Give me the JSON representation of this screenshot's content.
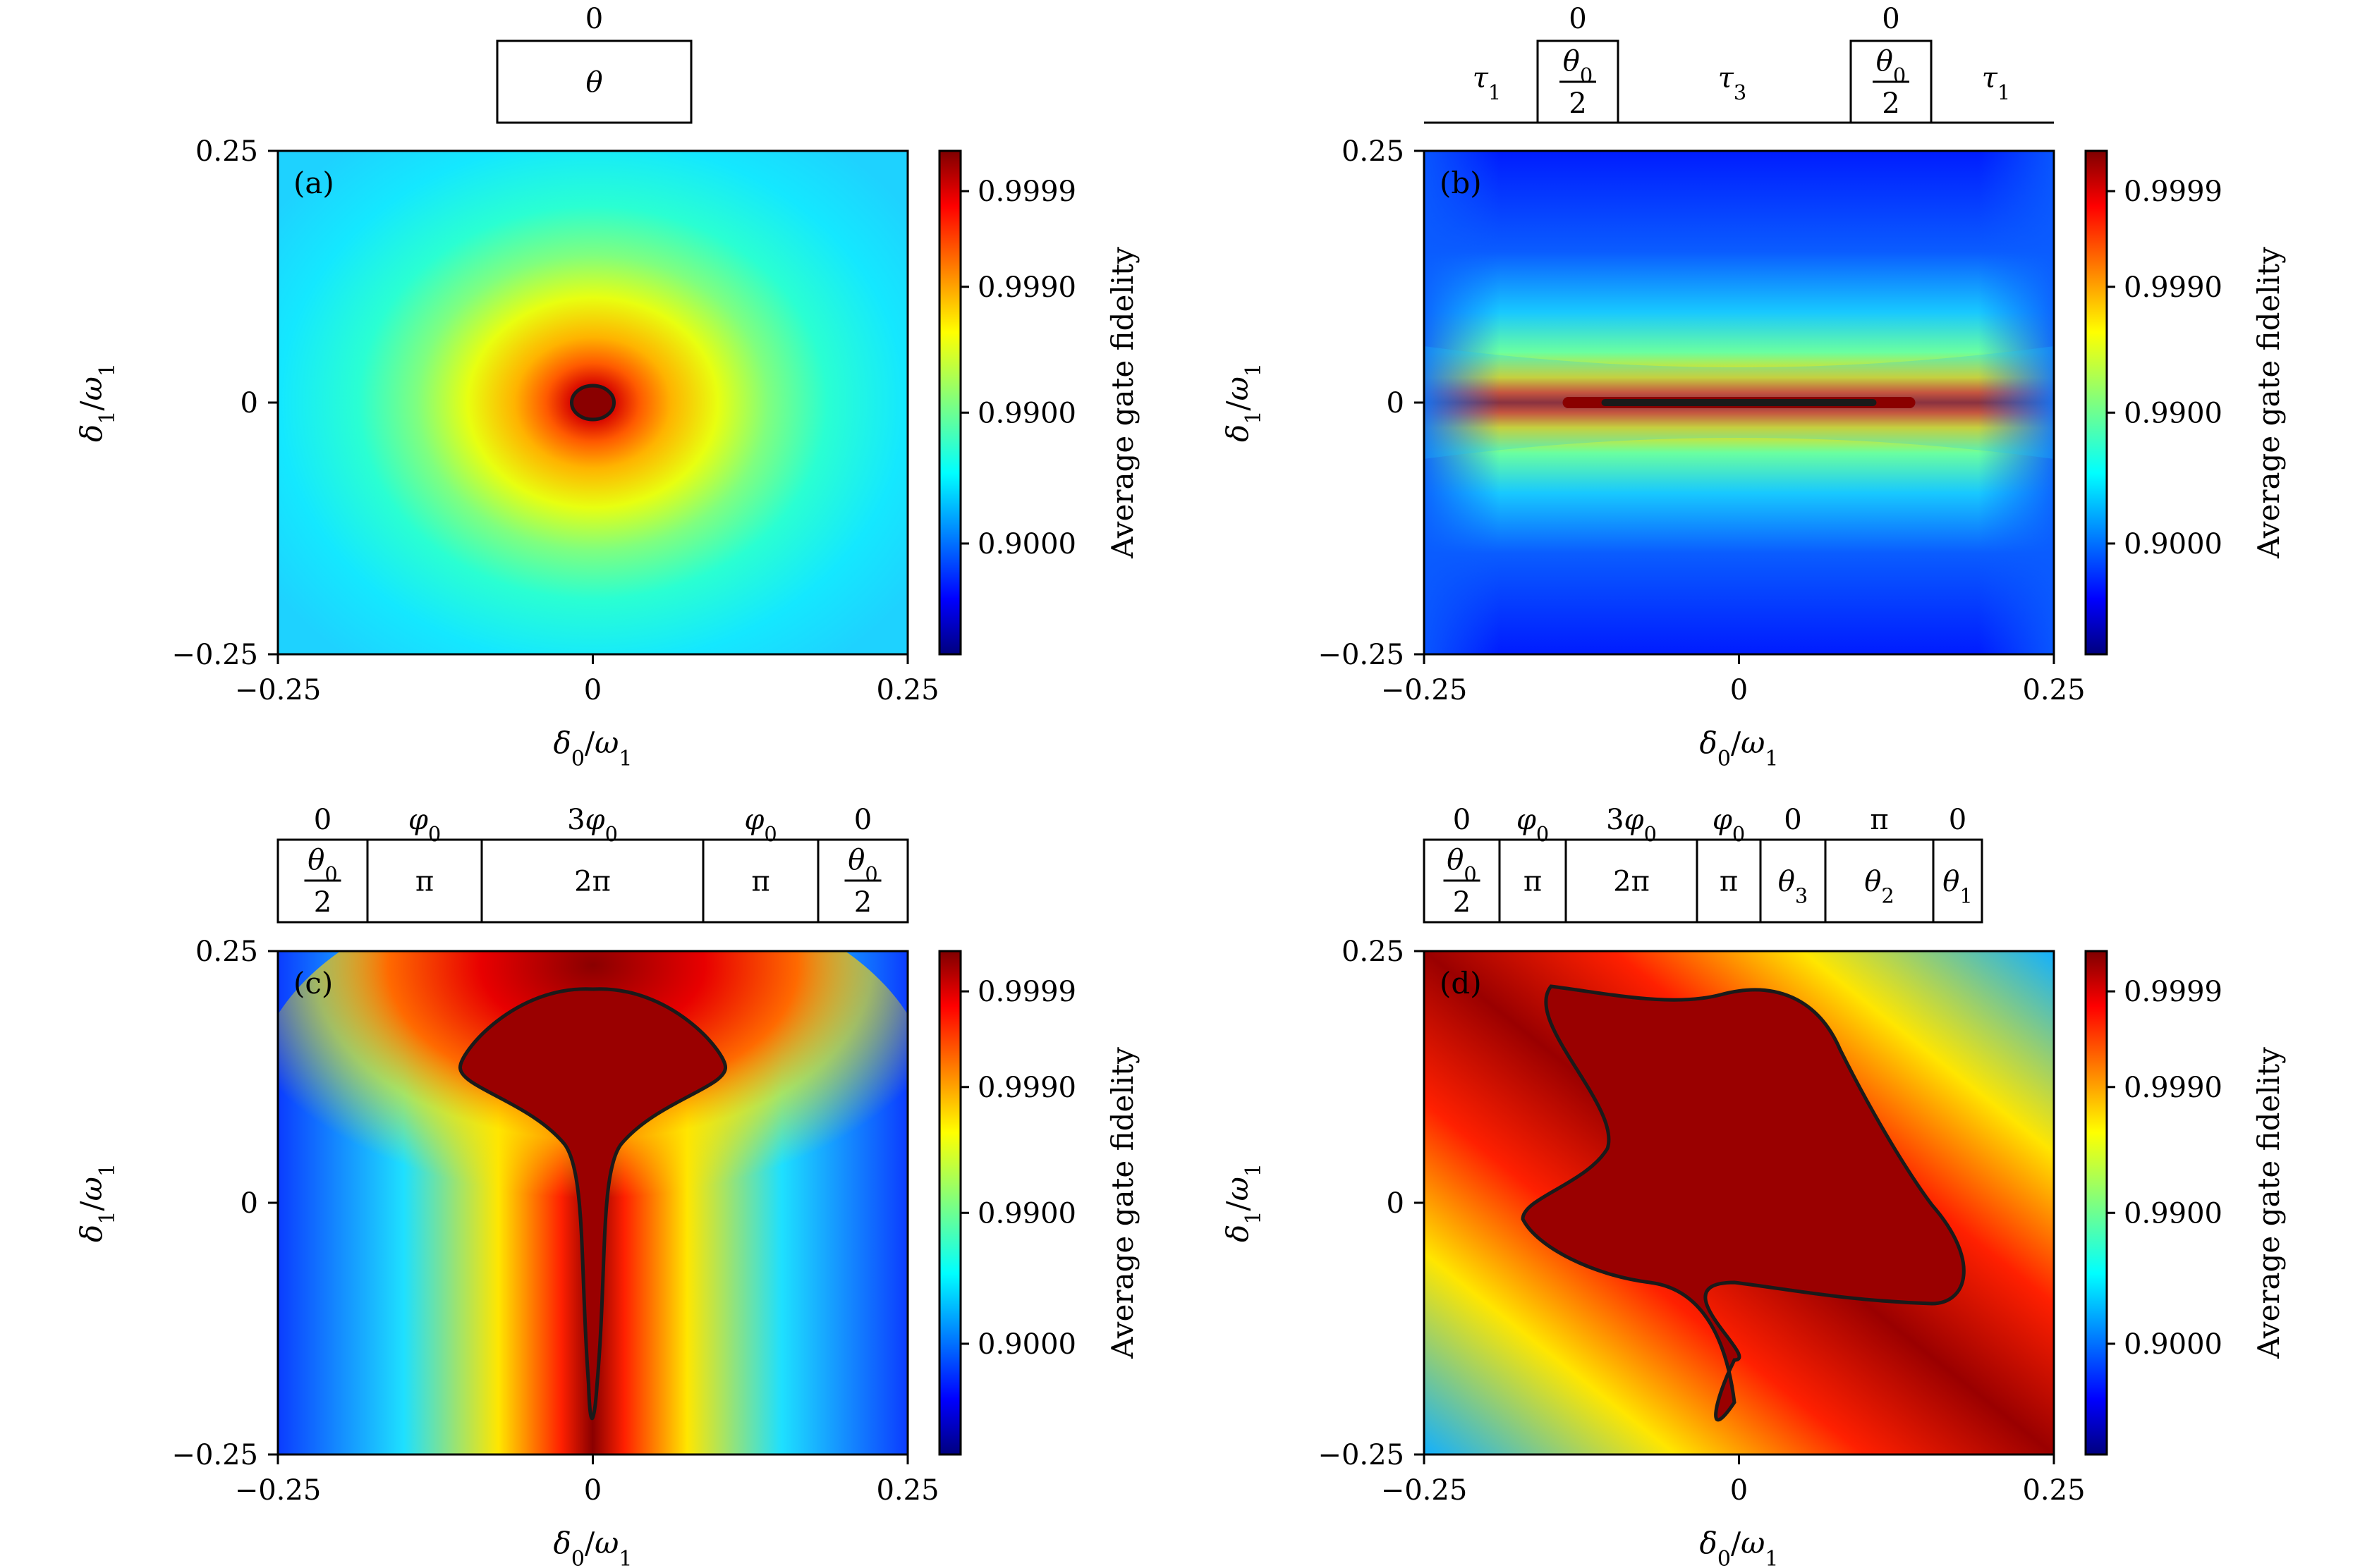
{
  "colorbar": {
    "label": "Average gate fidelity",
    "ticks": [
      "0.9999",
      "0.9990",
      "0.9900",
      "0.9000"
    ],
    "colormap": "jet"
  },
  "axes": {
    "xlabel": "δ0/ω1",
    "ylabel": "δ1/ω1",
    "xticks": [
      "−0.25",
      "0",
      "0.25"
    ],
    "yticks": [
      "0.25",
      "0",
      "−0.25"
    ]
  },
  "chart_data": [
    {
      "type": "heatmap",
      "panel": "(a)",
      "xlabel": "δ0/ω1",
      "ylabel": "δ1/ω1",
      "xlim": [
        -0.25,
        0.25
      ],
      "ylim": [
        -0.25,
        0.25
      ],
      "colorbar_label": "Average gate fidelity",
      "colorbar_ticks": [
        0.9999,
        0.999,
        0.99,
        0.9
      ],
      "contour_level": 0.9999,
      "pulse_sequence": {
        "phases": [
          "0"
        ],
        "angles": [
          "θ"
        ]
      }
    },
    {
      "type": "heatmap",
      "panel": "(b)",
      "xlabel": "δ0/ω1",
      "ylabel": "δ1/ω1",
      "xlim": [
        -0.25,
        0.25
      ],
      "ylim": [
        -0.25,
        0.25
      ],
      "colorbar_label": "Average gate fidelity",
      "colorbar_ticks": [
        0.9999,
        0.999,
        0.99,
        0.9
      ],
      "contour_level": 0.9999,
      "pulse_sequence": {
        "phases": [
          "0",
          "0"
        ],
        "angles": [
          "θ0/2",
          "θ0/2"
        ],
        "delays": [
          "τ1",
          "τ3",
          "τ1"
        ]
      }
    },
    {
      "type": "heatmap",
      "panel": "(c)",
      "xlabel": "δ0/ω1",
      "ylabel": "δ1/ω1",
      "xlim": [
        -0.25,
        0.25
      ],
      "ylim": [
        -0.25,
        0.25
      ],
      "colorbar_label": "Average gate fidelity",
      "colorbar_ticks": [
        0.9999,
        0.999,
        0.99,
        0.9
      ],
      "contour_level": 0.9999,
      "pulse_sequence": {
        "phases": [
          "0",
          "φ0",
          "3φ0",
          "φ0",
          "0"
        ],
        "angles": [
          "θ0/2",
          "π",
          "2π",
          "π",
          "θ0/2"
        ]
      }
    },
    {
      "type": "heatmap",
      "panel": "(d)",
      "xlabel": "δ0/ω1",
      "ylabel": "δ1/ω1",
      "xlim": [
        -0.25,
        0.25
      ],
      "ylim": [
        -0.25,
        0.25
      ],
      "colorbar_label": "Average gate fidelity",
      "colorbar_ticks": [
        0.9999,
        0.999,
        0.99,
        0.9
      ],
      "contour_level": 0.9999,
      "pulse_sequence": {
        "phases": [
          "0",
          "φ0",
          "3φ0",
          "φ0",
          "0",
          "π",
          "0"
        ],
        "angles": [
          "θ0/2",
          "π",
          "2π",
          "π",
          "θ3",
          "θ2",
          "θ1"
        ]
      }
    }
  ]
}
